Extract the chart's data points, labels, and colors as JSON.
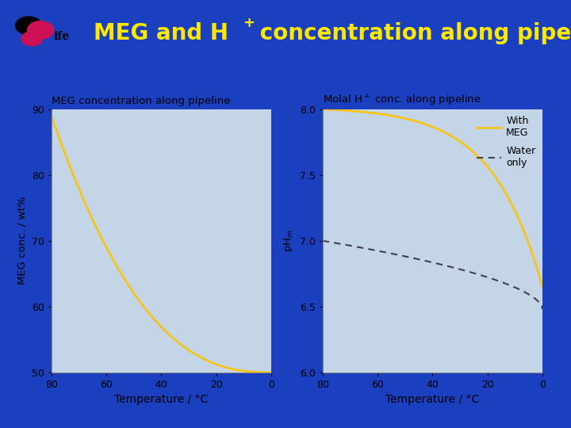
{
  "background_color": "#1A3FBF",
  "panel_bg_color": "#C5D5E8",
  "title_color": "#FFE800",
  "left_panel_title": "MEG concentration along pipeline",
  "right_panel_title": "Molal H$^+$ conc. along pipeline",
  "left_ylabel": "MEG conc. / wt%",
  "right_ylabel": "pH$_m$",
  "xlabel": "Temperature / °C",
  "left_ylim": [
    50,
    90
  ],
  "right_ylim": [
    6.0,
    8.0
  ],
  "left_yticks": [
    50,
    60,
    70,
    80,
    90
  ],
  "right_yticks": [
    6.0,
    6.5,
    7.0,
    7.5,
    8.0
  ],
  "xticks": [
    80,
    60,
    40,
    20,
    0
  ],
  "xlim": [
    80,
    0
  ],
  "meg_line_color": "#F5C518",
  "water_line_color": "#404050"
}
